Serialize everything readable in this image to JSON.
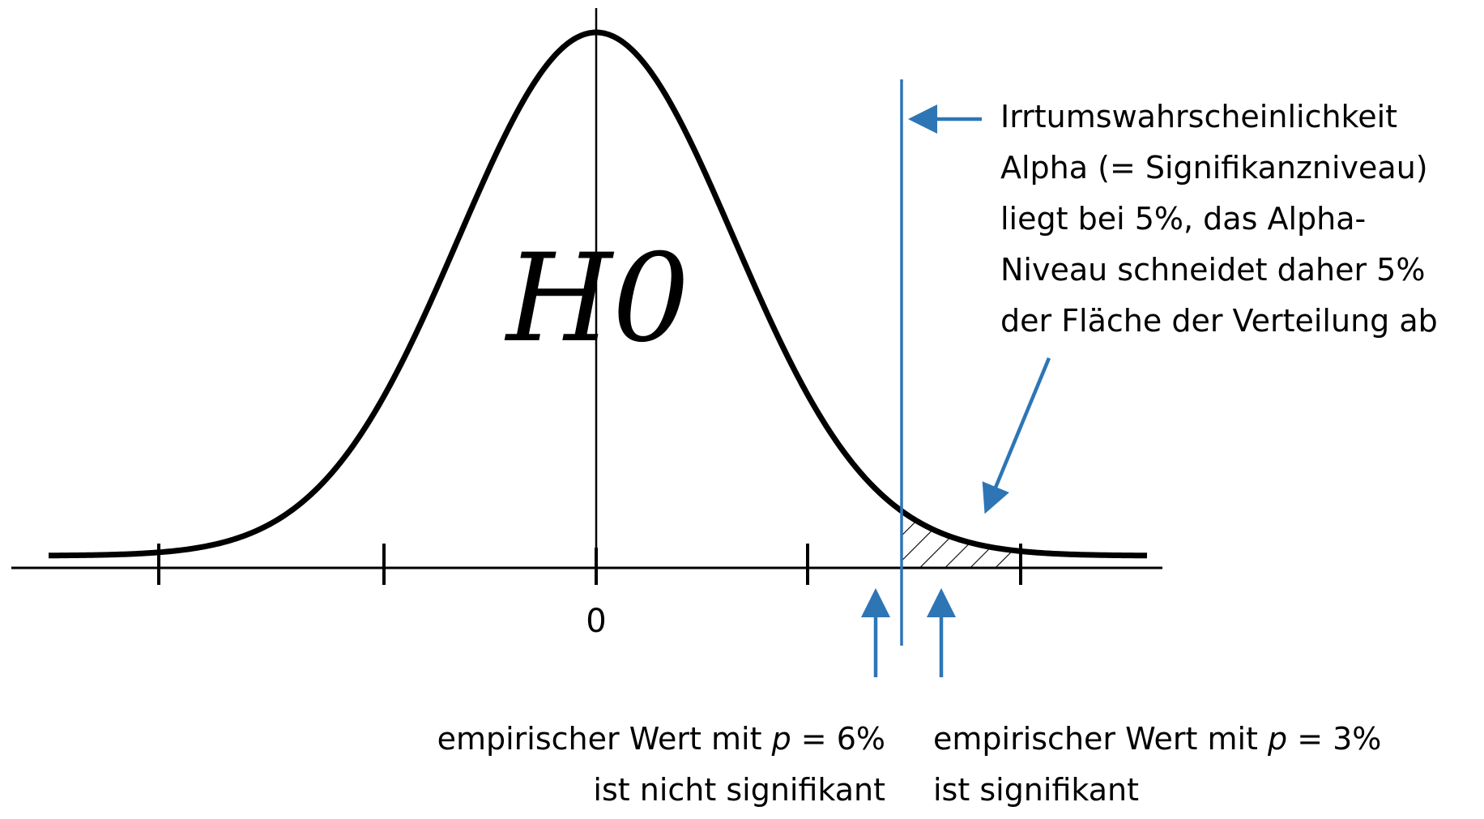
{
  "diagram": {
    "distribution_label": "H0",
    "axis_zero_label": "0",
    "alpha_annotation": {
      "lines": [
        "Irrtumswahrscheinlichkeit",
        "Alpha (= Signifikanzniveau)",
        "liegt bei 5%, das Alpha-",
        "Niveau schneidet daher 5%",
        "der Fläche der Verteilung ab"
      ]
    },
    "left_annotation": {
      "line1_prefix": "empirischer Wert mit ",
      "line1_var": "p",
      "line1_suffix": " = 6%",
      "line2": "ist nicht signifikant"
    },
    "right_annotation": {
      "line1_prefix": "empirischer Wert mit ",
      "line1_var": "p",
      "line1_suffix": " = 3%",
      "line2": "ist signifikant"
    },
    "colors": {
      "curve": "#000000",
      "annotation_blue": "#2e75b6"
    }
  }
}
